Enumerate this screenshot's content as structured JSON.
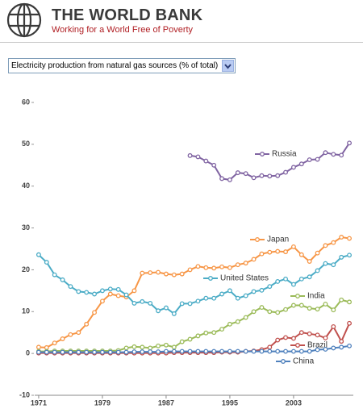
{
  "header": {
    "title": "THE WORLD BANK",
    "tagline": "Working for a World Free of Poverty"
  },
  "selector": {
    "label": "Electricity production from natural gas sources (% of total)"
  },
  "chart_data": {
    "type": "line",
    "x": [
      1971,
      1972,
      1973,
      1974,
      1975,
      1976,
      1977,
      1978,
      1979,
      1980,
      1981,
      1982,
      1983,
      1984,
      1985,
      1986,
      1987,
      1988,
      1989,
      1990,
      1991,
      1992,
      1993,
      1994,
      1995,
      1996,
      1997,
      1998,
      1999,
      2000,
      2001,
      2002,
      2003,
      2004,
      2005,
      2006,
      2007,
      2008,
      2009,
      2010
    ],
    "xlim": [
      1970.5,
      2010.5
    ],
    "xticks": [
      1971,
      1979,
      1987,
      1995,
      2003
    ],
    "ylim": [
      -10,
      60
    ],
    "yticks": [
      -10,
      0,
      10,
      20,
      30,
      40,
      50,
      60
    ],
    "series": [
      {
        "name": "Russia",
        "color": "#8064a2",
        "values": [
          null,
          null,
          null,
          null,
          null,
          null,
          null,
          null,
          null,
          null,
          null,
          null,
          null,
          null,
          null,
          null,
          null,
          null,
          null,
          47.3,
          47.0,
          46.0,
          45.0,
          41.8,
          41.5,
          43.2,
          43.0,
          42.0,
          42.5,
          42.4,
          42.5,
          43.3,
          44.5,
          45.3,
          46.3,
          46.4,
          48.0,
          47.6,
          47.4,
          50.3
        ]
      },
      {
        "name": "Japan",
        "color": "#f79646",
        "values": [
          1.5,
          1.4,
          2.5,
          3.5,
          4.5,
          5.0,
          7.0,
          9.8,
          12.5,
          14.2,
          13.8,
          13.5,
          15.0,
          19.2,
          19.3,
          19.4,
          19.0,
          18.8,
          19.0,
          20.0,
          20.8,
          20.5,
          20.4,
          20.7,
          20.5,
          21.2,
          21.6,
          22.5,
          23.8,
          24.2,
          24.4,
          24.3,
          25.5,
          23.6,
          22.0,
          24.0,
          25.8,
          26.5,
          27.8,
          27.5
        ]
      },
      {
        "name": "United States",
        "color": "#4bacc6",
        "values": [
          23.6,
          21.8,
          18.8,
          17.6,
          16.0,
          14.8,
          14.6,
          14.2,
          15.0,
          15.4,
          15.3,
          14.0,
          12.0,
          12.4,
          12.0,
          10.2,
          10.9,
          9.5,
          11.9,
          11.9,
          12.5,
          13.2,
          13.2,
          14.2,
          15.0,
          13.2,
          13.8,
          14.8,
          15.1,
          16.0,
          17.2,
          17.8,
          16.5,
          17.8,
          18.3,
          19.8,
          21.5,
          21.2,
          23.0,
          23.5
        ]
      },
      {
        "name": "India",
        "color": "#9bbb59",
        "values": [
          0.5,
          0.5,
          0.6,
          0.6,
          0.6,
          0.6,
          0.6,
          0.6,
          0.6,
          0.6,
          0.7,
          1.3,
          1.6,
          1.5,
          1.3,
          1.8,
          2.0,
          1.5,
          2.8,
          3.4,
          4.2,
          4.9,
          5.0,
          5.8,
          7.0,
          7.6,
          8.6,
          10.0,
          11.0,
          10.0,
          9.8,
          10.5,
          11.5,
          11.5,
          10.8,
          10.6,
          11.8,
          10.4,
          12.8,
          12.3
        ]
      },
      {
        "name": "Brazil",
        "color": "#c0504d",
        "values": [
          0.1,
          0.1,
          0.1,
          0.1,
          0.1,
          0.1,
          0.1,
          0.1,
          0.1,
          0.1,
          0.1,
          0.1,
          0.1,
          0.1,
          0.1,
          0.1,
          0.1,
          0.2,
          0.2,
          0.2,
          0.2,
          0.2,
          0.2,
          0.3,
          0.3,
          0.3,
          0.5,
          0.6,
          0.9,
          1.5,
          3.2,
          3.8,
          3.6,
          5.0,
          4.7,
          4.4,
          3.7,
          6.4,
          2.9,
          7.2
        ]
      },
      {
        "name": "China",
        "color": "#4f81bd",
        "values": [
          0.3,
          0.3,
          0.3,
          0.3,
          0.3,
          0.3,
          0.3,
          0.3,
          0.3,
          0.3,
          0.3,
          0.3,
          0.4,
          0.4,
          0.4,
          0.4,
          0.5,
          0.5,
          0.5,
          0.5,
          0.5,
          0.5,
          0.5,
          0.5,
          0.5,
          0.5,
          0.5,
          0.5,
          0.5,
          0.5,
          0.5,
          0.5,
          0.5,
          0.5,
          0.5,
          0.9,
          1.0,
          1.3,
          1.5,
          1.8
        ]
      }
    ]
  }
}
